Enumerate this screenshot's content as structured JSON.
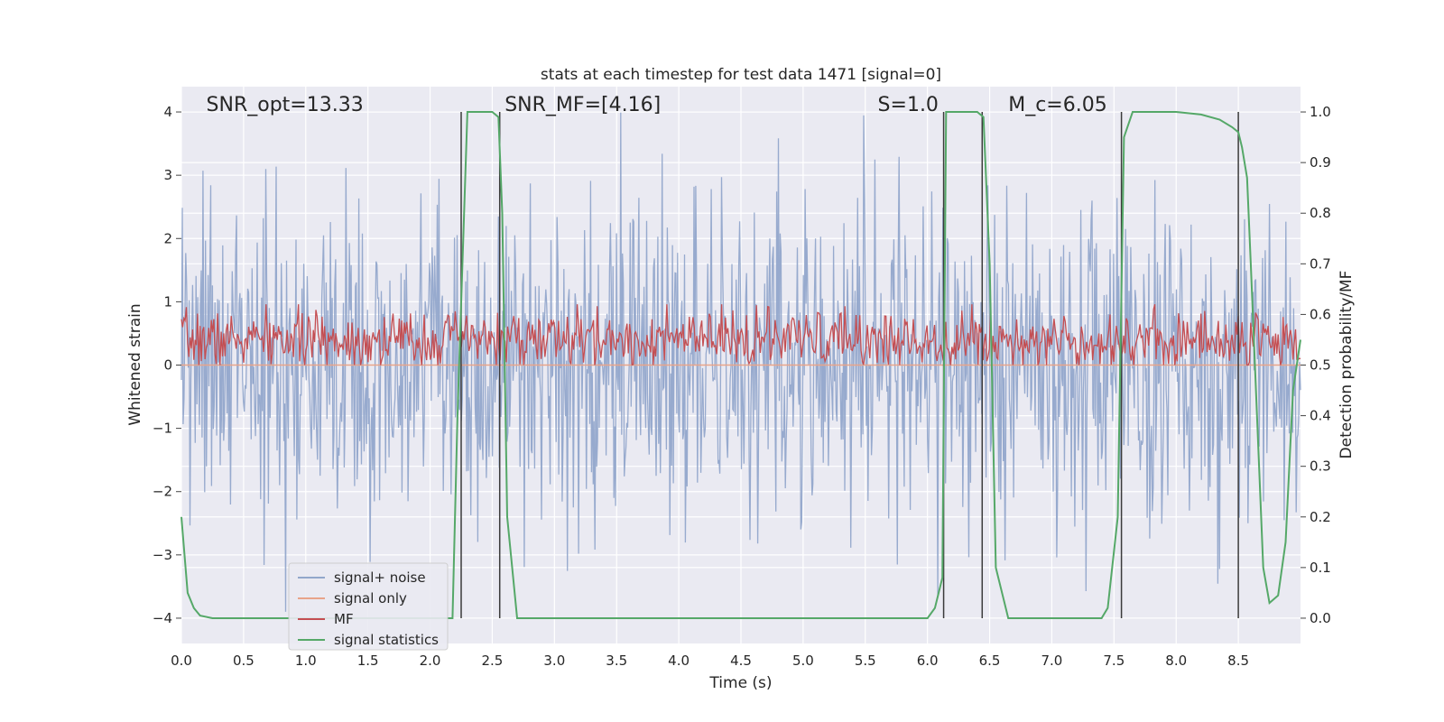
{
  "chart_data": {
    "type": "line",
    "title": "stats at each timestep for test data 1471 [signal=0]",
    "xlabel": "Time (s)",
    "ylabel_left": "Whitened strain",
    "ylabel_right": "Detection probability/MF",
    "xlim": [
      0,
      9.0
    ],
    "ylim_left": [
      -4.4,
      4.4
    ],
    "ylim_right": [
      -0.05,
      1.05
    ],
    "xticks": [
      0.0,
      0.5,
      1.0,
      1.5,
      2.0,
      2.5,
      3.0,
      3.5,
      4.0,
      4.5,
      5.0,
      5.5,
      6.0,
      6.5,
      7.0,
      7.5,
      8.0,
      8.5
    ],
    "xtick_labels": [
      "0.0",
      "0.5",
      "1.0",
      "1.5",
      "2.0",
      "2.5",
      "3.0",
      "3.5",
      "4.0",
      "4.5",
      "5.0",
      "5.5",
      "6.0",
      "6.5",
      "7.0",
      "7.5",
      "8.0",
      "8.5"
    ],
    "yticks_left": [
      -4,
      -3,
      -2,
      -1,
      0,
      1,
      2,
      3,
      4
    ],
    "ytick_labels_left": [
      "−4",
      "−3",
      "−2",
      "−1",
      "0",
      "1",
      "2",
      "3",
      "4"
    ],
    "yticks_right": [
      0.0,
      0.1,
      0.2,
      0.3,
      0.4,
      0.5,
      0.6,
      0.7,
      0.8,
      0.9,
      1.0
    ],
    "ytick_labels_right": [
      "0.0",
      "0.1",
      "0.2",
      "0.3",
      "0.4",
      "0.5",
      "0.6",
      "0.7",
      "0.8",
      "0.9",
      "1.0"
    ],
    "annotations": [
      {
        "id": "snr-opt",
        "text": "SNR_opt=13.33",
        "x": 0.2
      },
      {
        "id": "snr-mf",
        "text": "SNR_MF=[4.16]",
        "x": 2.6
      },
      {
        "id": "s-val",
        "text": "S=1.0",
        "x": 5.6
      },
      {
        "id": "mc-val",
        "text": "M_c=6.05",
        "x": 6.65
      }
    ],
    "vertical_lines": [
      2.25,
      2.56,
      6.13,
      6.44,
      7.56,
      8.5
    ],
    "series": [
      {
        "name": "signal+ noise",
        "axis": "left",
        "color": "#92a7cb",
        "generated": true,
        "seed": 1471,
        "n_points": 1300,
        "noise_sd": 1.25,
        "spikes_upper_max": 4.0,
        "spikes_lower_min": -3.9
      },
      {
        "name": "signal only",
        "axis": "left",
        "color": "#e8a48a",
        "x": [
          0,
          9.0
        ],
        "y": [
          0,
          0
        ]
      },
      {
        "name": "MF",
        "axis": "right",
        "color": "#c44e52",
        "generated": true,
        "seed": 7,
        "n_points": 900,
        "center": 0.55,
        "spread": 0.028,
        "range": [
          0.5,
          0.62
        ]
      },
      {
        "name": "signal statistics",
        "axis": "right",
        "color": "#55a868",
        "x": [
          0.0,
          0.05,
          0.1,
          0.15,
          0.25,
          0.5,
          1.0,
          1.5,
          2.0,
          2.18,
          2.22,
          2.3,
          2.35,
          2.5,
          2.55,
          2.58,
          2.62,
          2.7,
          3.0,
          4.0,
          5.0,
          6.0,
          6.06,
          6.12,
          6.15,
          6.2,
          6.4,
          6.45,
          6.5,
          6.55,
          6.65,
          7.0,
          7.4,
          7.45,
          7.53,
          7.58,
          7.65,
          7.8,
          8.0,
          8.2,
          8.35,
          8.45,
          8.5,
          8.53,
          8.57,
          8.6,
          8.65,
          8.7,
          8.75,
          8.82,
          8.88,
          8.94,
          9.0
        ],
        "y": [
          0.2,
          0.05,
          0.02,
          0.005,
          0.0,
          0.0,
          0.0,
          0.0,
          0.0,
          0.0,
          0.4,
          1.0,
          1.0,
          1.0,
          0.99,
          0.8,
          0.2,
          0.0,
          0.0,
          0.0,
          0.0,
          0.0,
          0.02,
          0.08,
          1.0,
          1.0,
          1.0,
          0.99,
          0.7,
          0.1,
          0.0,
          0.0,
          0.0,
          0.02,
          0.2,
          0.95,
          1.0,
          1.0,
          1.0,
          0.995,
          0.985,
          0.97,
          0.96,
          0.93,
          0.87,
          0.7,
          0.4,
          0.1,
          0.03,
          0.045,
          0.15,
          0.45,
          0.55
        ]
      }
    ],
    "legend": {
      "location": "lower-left",
      "entries": [
        "signal+ noise",
        "signal only",
        "MF",
        "signal statistics"
      ]
    },
    "colors": {
      "plot_background": "#eaeaf2",
      "grid": "#ffffff",
      "vline": "#3b3b3b"
    }
  }
}
